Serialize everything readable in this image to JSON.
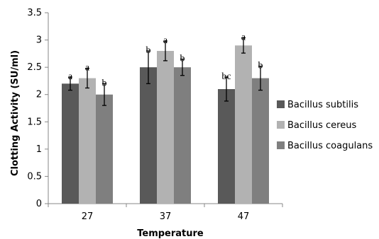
{
  "chart_data": {
    "type": "bar",
    "title": "",
    "xlabel": "Temperature",
    "ylabel": "Clotting Activity (SU/ml)",
    "ylim": [
      0,
      3.5
    ],
    "ytick_step": 0.5,
    "yticks": [
      "0",
      "0.5",
      "1",
      "1.5",
      "2",
      "2.5",
      "3",
      "3.5"
    ],
    "categories": [
      "27",
      "37",
      "47"
    ],
    "grid": false,
    "legend_position": "right",
    "series": [
      {
        "name": "Bacillus subtilis",
        "color": "#595959",
        "values": [
          2.2,
          2.5,
          2.1
        ],
        "errors": [
          0.12,
          0.3,
          0.22
        ],
        "labels": [
          "a",
          "b",
          "bc"
        ]
      },
      {
        "name": "Bacillus cereus",
        "color": "#b2b2b2",
        "values": [
          2.3,
          2.8,
          2.9
        ],
        "errors": [
          0.18,
          0.18,
          0.14
        ],
        "labels": [
          "a",
          "a",
          "a"
        ]
      },
      {
        "name": "Bacillus coagulans",
        "color": "#7f7f7f",
        "values": [
          2.0,
          2.5,
          2.3
        ],
        "errors": [
          0.2,
          0.15,
          0.22
        ],
        "labels": [
          "b",
          "b",
          "b"
        ]
      }
    ]
  }
}
